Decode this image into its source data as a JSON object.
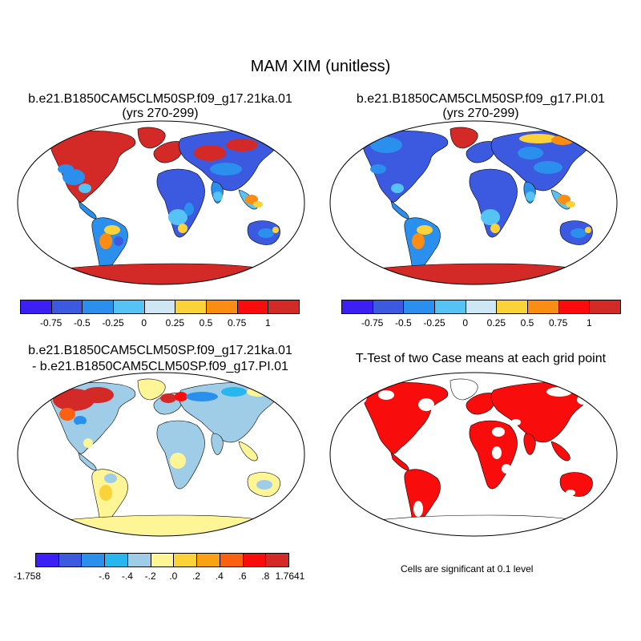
{
  "title": "MAM XIM (unitless)",
  "panels": {
    "a": {
      "line1": "b.e21.B1850CAM5CLM50SP.f09_g17.21ka.01",
      "line2": "(yrs 270-299)"
    },
    "b": {
      "line1": "b.e21.B1850CAM5CLM50SP.f09_g17.PI.01",
      "line2": "(yrs 270-299)"
    },
    "c": {
      "line1": "b.e21.B1850CAM5CLM50SP.f09_g17.21ka.01",
      "line2": "- b.e21.B1850CAM5CLM50SP.f09_g17.PI.01"
    },
    "d": {
      "line1": "T-Test of two Case means at each grid point"
    }
  },
  "colorbar_case": {
    "colors": [
      "#3b1ff5",
      "#3c5ae0",
      "#2b8fee",
      "#55c3f3",
      "#cde8f4",
      "#fcd23a",
      "#fb8c14",
      "#f90c0c",
      "#d42a27"
    ],
    "labels": [
      "-0.75",
      "-0.5",
      "-0.25",
      "0",
      "0.25",
      "0.5",
      "0.75",
      "1"
    ]
  },
  "colorbar_diff": {
    "colors": [
      "#3b1ff5",
      "#3c5ae0",
      "#2b8fee",
      "#28b6ee",
      "#9fcde8",
      "#fdf596",
      "#fcd23a",
      "#fba114",
      "#fb6110",
      "#f90c0c",
      "#d42a27"
    ],
    "labels": [
      "-1.758",
      "-.6",
      "-.4",
      "-.2",
      ".0",
      ".2",
      ".4",
      ".6",
      ".8",
      "1.7641"
    ]
  },
  "significance_note": "Cells are significant at 0.1 level"
}
